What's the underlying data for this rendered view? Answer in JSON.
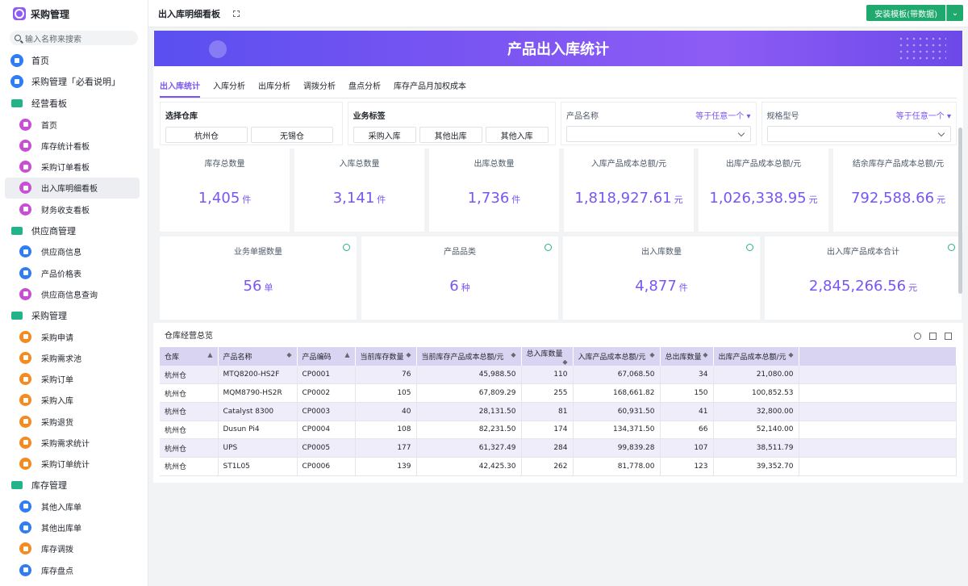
{
  "sidebar": {
    "title": "采购管理",
    "search_placeholder": "输入名称来搜索",
    "items": [
      {
        "label": "首页",
        "type": "top",
        "icon": "home-icon"
      },
      {
        "label": "采购管理「必看说明」",
        "type": "top",
        "icon": "doc-icon"
      },
      {
        "label": "经营看板",
        "type": "group",
        "icon": "folder-icon"
      },
      {
        "label": "首页",
        "type": "child",
        "icon": "dashboard-icon"
      },
      {
        "label": "库存统计看板",
        "type": "child",
        "icon": "dashboard-icon"
      },
      {
        "label": "采购订单看板",
        "type": "child",
        "icon": "dashboard-icon"
      },
      {
        "label": "出入库明细看板",
        "type": "child",
        "icon": "dashboard-icon",
        "active": true
      },
      {
        "label": "财务收支看板",
        "type": "child",
        "icon": "dashboard-icon"
      },
      {
        "label": "供应商管理",
        "type": "group",
        "icon": "folder-icon"
      },
      {
        "label": "供应商信息",
        "type": "child",
        "icon": "user-icon"
      },
      {
        "label": "产品价格表",
        "type": "child",
        "icon": "doc-icon"
      },
      {
        "label": "供应商信息查询",
        "type": "child",
        "icon": "dashboard-icon"
      },
      {
        "label": "采购管理",
        "type": "group",
        "icon": "folder-icon"
      },
      {
        "label": "采购申请",
        "type": "child",
        "icon": "form-icon"
      },
      {
        "label": "采购需求池",
        "type": "child",
        "icon": "form-icon"
      },
      {
        "label": "采购订单",
        "type": "child",
        "icon": "form-icon"
      },
      {
        "label": "采购入库",
        "type": "child",
        "icon": "form-icon"
      },
      {
        "label": "采购退货",
        "type": "child",
        "icon": "form-icon"
      },
      {
        "label": "采购需求统计",
        "type": "child",
        "icon": "report-icon"
      },
      {
        "label": "采购订单统计",
        "type": "child",
        "icon": "report-icon"
      },
      {
        "label": "库存管理",
        "type": "group",
        "icon": "folder-icon"
      },
      {
        "label": "其他入库单",
        "type": "child",
        "icon": "doc-icon"
      },
      {
        "label": "其他出库单",
        "type": "child",
        "icon": "doc-icon"
      },
      {
        "label": "库存调拨",
        "type": "child",
        "icon": "form-icon"
      },
      {
        "label": "库存盘点",
        "type": "child",
        "icon": "doc-icon"
      }
    ]
  },
  "topbar": {
    "title": "出入库明细看板",
    "install_label": "安装模板(带数据)"
  },
  "banner": {
    "title": "产品出入库统计"
  },
  "tabs": [
    "出入库统计",
    "入库分析",
    "出库分析",
    "调拨分析",
    "盘点分析",
    "库存产品月加权成本"
  ],
  "filters": {
    "warehouse": {
      "title": "选择仓库",
      "options": [
        "杭州仓",
        "无锡仓"
      ]
    },
    "biz_tag": {
      "title": "业务标签",
      "options": [
        "采购入库",
        "其他出库",
        "其他入库"
      ]
    },
    "product_name": {
      "title": "产品名称",
      "condition": "等于任意一个"
    },
    "spec_model": {
      "title": "规格型号",
      "condition": "等于任意一个"
    }
  },
  "stats_row1": [
    {
      "label": "库存总数量",
      "value": "1,405",
      "unit": "件"
    },
    {
      "label": "入库总数量",
      "value": "3,141",
      "unit": "件"
    },
    {
      "label": "出库总数量",
      "value": "1,736",
      "unit": "件"
    },
    {
      "label": "入库产品成本总额/元",
      "value": "1,818,927.61",
      "unit": "元"
    },
    {
      "label": "出库产品成本总额/元",
      "value": "1,026,338.95",
      "unit": "元"
    },
    {
      "label": "结余库存产品成本总额/元",
      "value": "792,588.66",
      "unit": "元"
    }
  ],
  "stats_row2": [
    {
      "label": "业务单据数量",
      "value": "56",
      "unit": "单"
    },
    {
      "label": "产品品类",
      "value": "6",
      "unit": "种"
    },
    {
      "label": "出入库数量",
      "value": "4,877",
      "unit": "件"
    },
    {
      "label": "出入库产品成本合计",
      "value": "2,845,266.56",
      "unit": "元"
    }
  ],
  "table": {
    "title": "仓库经营总览",
    "columns": [
      "仓库",
      "产品名称",
      "产品编码",
      "当前库存数量",
      "当前库存产品成本总额/元",
      "总入库数量",
      "入库产品成本总额/元",
      "总出库数量",
      "出库产品成本总额/元"
    ],
    "rows": [
      [
        "杭州仓",
        "MTQ8200-HS2F",
        "CP0001",
        "76",
        "45,988.50",
        "110",
        "67,068.50",
        "34",
        "21,080.00"
      ],
      [
        "杭州仓",
        "MQM8790-HS2R",
        "CP0002",
        "105",
        "67,809.29",
        "255",
        "168,661.82",
        "150",
        "100,852.53"
      ],
      [
        "杭州仓",
        "Catalyst 8300",
        "CP0003",
        "40",
        "28,131.50",
        "81",
        "60,931.50",
        "41",
        "32,800.00"
      ],
      [
        "杭州仓",
        "Dusun Pi4",
        "CP0004",
        "108",
        "82,231.50",
        "174",
        "134,371.50",
        "66",
        "52,140.00"
      ],
      [
        "杭州仓",
        "UPS",
        "CP0005",
        "177",
        "61,327.49",
        "284",
        "99,839.28",
        "107",
        "38,511.79"
      ],
      [
        "杭州仓",
        "ST1L05",
        "CP0006",
        "139",
        "42,425.30",
        "262",
        "81,778.00",
        "123",
        "39,352.70"
      ]
    ]
  }
}
